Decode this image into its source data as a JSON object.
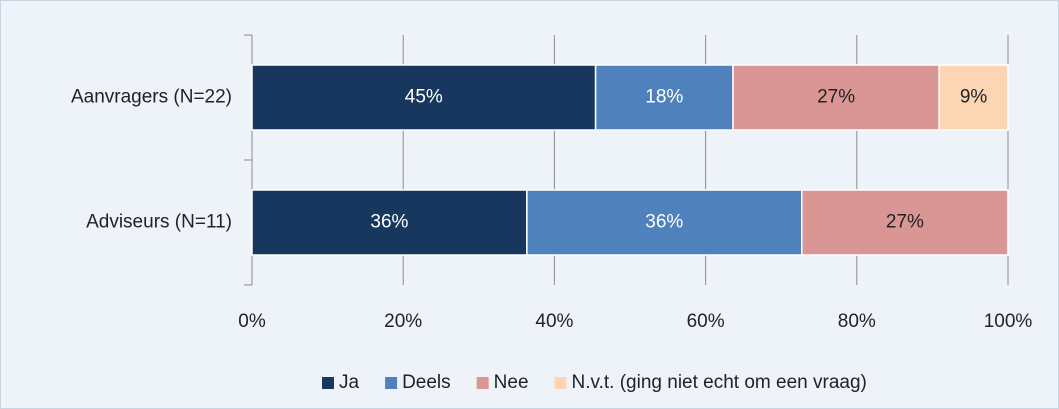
{
  "chart_data": {
    "type": "stacked-bar-horizontal",
    "categories": [
      "Aanvragers (N=22)",
      "Adviseurs (N=11)"
    ],
    "series": [
      {
        "name": "Ja",
        "color": "#17375e",
        "values": [
          45.45,
          36.36
        ],
        "value_labels": [
          "45%",
          "36%"
        ]
      },
      {
        "name": "Deels",
        "color": "#4f81bd",
        "values": [
          18.18,
          36.36
        ],
        "value_labels": [
          "18%",
          "36%"
        ]
      },
      {
        "name": "Nee",
        "color": "#d99694",
        "values": [
          27.27,
          27.27
        ],
        "value_labels": [
          "27%",
          "27%"
        ]
      },
      {
        "name": "N.v.t. (ging niet echt om een vraag)",
        "color": "#fcd5b5",
        "values": [
          9.09,
          null
        ],
        "value_labels": [
          "9%",
          null
        ]
      }
    ],
    "xlim": [
      0,
      100
    ],
    "xticks": [
      {
        "value": 0,
        "label": "0%"
      },
      {
        "value": 20,
        "label": "20%"
      },
      {
        "value": 40,
        "label": "40%"
      },
      {
        "value": 60,
        "label": "60%"
      },
      {
        "value": 80,
        "label": "80%"
      },
      {
        "value": 100,
        "label": "100%"
      }
    ],
    "grid": true,
    "legend": "bottom"
  }
}
